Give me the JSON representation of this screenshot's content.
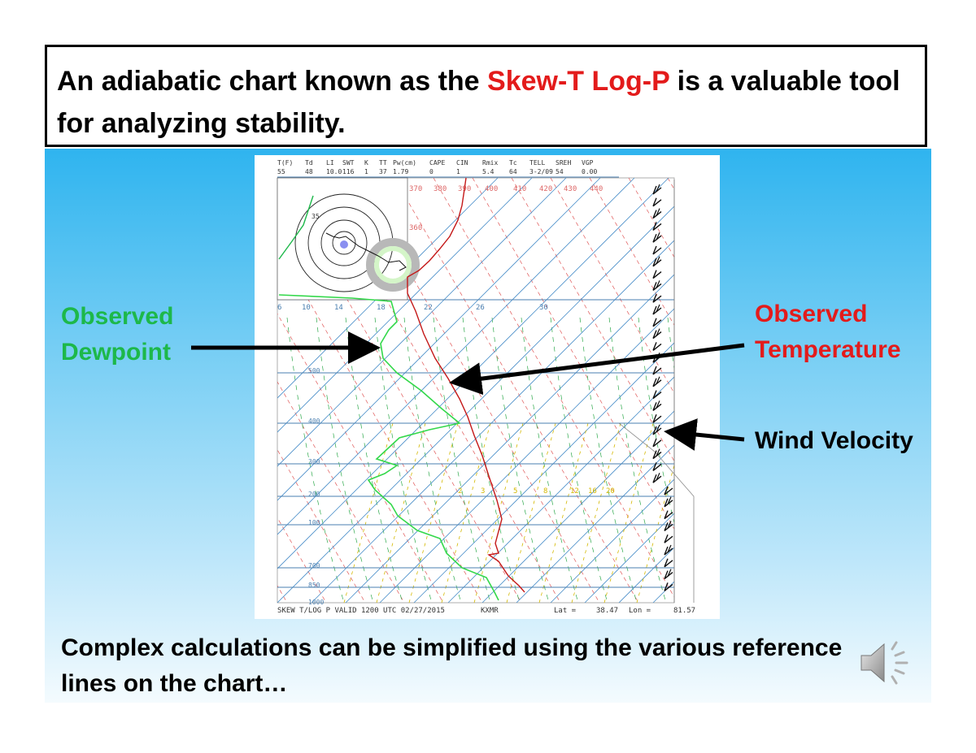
{
  "title": {
    "before": "An adiabatic chart known as the ",
    "highlight": "Skew-T Log-P",
    "after": " is a valuable tool for analyzing stability."
  },
  "labels": {
    "dewpoint_line1": "Observed",
    "dewpoint_line2": "Dewpoint",
    "temperature_line1": "Observed",
    "temperature_line2": "Temperature",
    "wind": "Wind Velocity"
  },
  "caption": "Complex calculations can be simplified using the various reference lines on the chart…",
  "sounding": {
    "header_labels": [
      "T(F)",
      "Td",
      "LI",
      "SWT",
      "K",
      "TT",
      "Pw(cm)",
      "CAPE",
      "CIN",
      "Rmix",
      "Tc",
      "TELL",
      "SREH",
      "VGP"
    ],
    "header_values": [
      "55",
      "48",
      "10.0",
      "116",
      "1",
      "37",
      "1.79",
      "0",
      "1",
      "5.4",
      "64",
      "3-2/09",
      "54",
      "0.00"
    ],
    "theta_labels": [
      "370",
      "380",
      "390",
      "400",
      "410",
      "420",
      "430",
      "440",
      "360"
    ],
    "temp_labels": [
      "6",
      "10",
      "14",
      "18",
      "22",
      "26",
      "30"
    ],
    "pressure_labels": [
      "500",
      "400",
      "300",
      "200",
      "100",
      "700",
      "850",
      "1000"
    ],
    "mixing_labels": [
      "2",
      "3",
      "5",
      "8",
      "12",
      "16",
      "20"
    ],
    "footer_left": "SKEW T/LOG P VALID 1200 UTC 02/27/2015",
    "footer_station": "KXMR",
    "footer_lat": "Lat =",
    "footer_lat_val": "38.47",
    "footer_lon": "Lon =",
    "footer_lon_val": "81.57",
    "hodo_label": "35"
  },
  "colors": {
    "title_highlight": "#e31b1b",
    "dewpoint": "#1db84a",
    "temperature": "#e31b1b",
    "isobar": "#4a7fb0",
    "isotherm": "#4a8fc9",
    "adiabat_dry": "#e05858",
    "adiabat_moist": "#2ca84a",
    "mixing_ratio": "#d4b800"
  },
  "icons": {
    "audio": "speaker-icon"
  }
}
